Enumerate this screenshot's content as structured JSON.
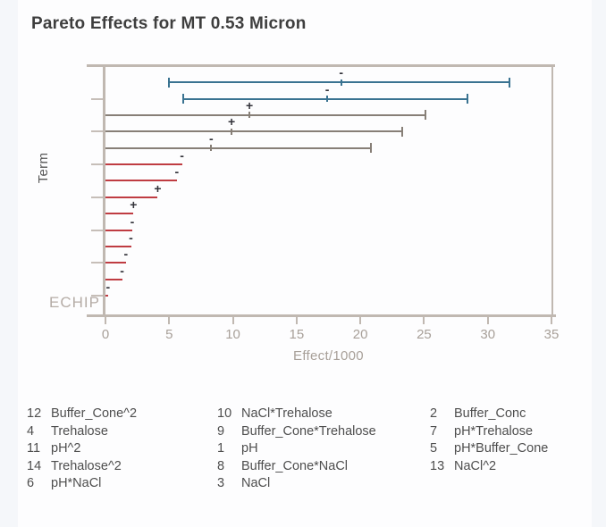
{
  "title": "Pareto Effects for MT 0.53 Micron",
  "chart_data": {
    "type": "bar",
    "subtype": "pareto-effects-with-intervals",
    "title": "Pareto Effects for MT 0.53 Micron",
    "xlabel": "Effect/1000",
    "ylabel": "Term",
    "watermark": "ECHIP",
    "xlim": [
      0,
      35
    ],
    "xticks": [
      0,
      5,
      10,
      15,
      20,
      25,
      30,
      35
    ],
    "grid": false,
    "colors": {
      "interval_blue": "#3a7391",
      "interval_gray": "#877f77",
      "bar_red": "#bf3c42",
      "frame": "#c0b8b1",
      "tick_label": "#a8a099"
    },
    "bars": [
      {
        "term_no": 12,
        "term": "Buffer_Cone^2",
        "style": "interval_blue",
        "low": 5.0,
        "high": 31.7,
        "effect": 18.5,
        "sign": "-"
      },
      {
        "term_no": 4,
        "term": "Trehalose",
        "style": "interval_blue",
        "low": 6.1,
        "high": 28.4,
        "effect": 17.4,
        "sign": "-"
      },
      {
        "term_no": 11,
        "term": "pH^2",
        "style": "interval_gray",
        "low": 0,
        "high": 25.1,
        "effect": 11.3,
        "sign": "+"
      },
      {
        "term_no": 14,
        "term": "Trehalose^2",
        "style": "interval_gray",
        "low": 0,
        "high": 23.3,
        "effect": 9.9,
        "sign": "+"
      },
      {
        "term_no": 6,
        "term": "pH*NaCl",
        "style": "interval_gray",
        "low": 0,
        "high": 20.8,
        "effect": 8.3,
        "sign": "-"
      },
      {
        "term_no": 10,
        "term": "NaCl*Trehalose",
        "style": "bar_red",
        "effect": 6.0,
        "sign": "-"
      },
      {
        "term_no": 9,
        "term": "Buffer_Cone*Trehalose",
        "style": "bar_red",
        "effect": 5.6,
        "sign": "-"
      },
      {
        "term_no": 1,
        "term": "pH",
        "style": "bar_red",
        "effect": 4.1,
        "sign": "+"
      },
      {
        "term_no": 8,
        "term": "Buffer_Cone*NaCl",
        "style": "bar_red",
        "effect": 2.2,
        "sign": "+"
      },
      {
        "term_no": 3,
        "term": "NaCl",
        "style": "bar_red",
        "effect": 2.1,
        "sign": "-"
      },
      {
        "term_no": 2,
        "term": "Buffer_Conc",
        "style": "bar_red",
        "effect": 2.0,
        "sign": "-"
      },
      {
        "term_no": 7,
        "term": "pH*Trehalose",
        "style": "bar_red",
        "effect": 1.6,
        "sign": "-"
      },
      {
        "term_no": 5,
        "term": "pH*Buffer_Cone",
        "style": "bar_red",
        "effect": 1.3,
        "sign": "-"
      },
      {
        "term_no": 13,
        "term": "NaCl^2",
        "style": "bar_red",
        "effect": 0.2,
        "sign": "-"
      }
    ]
  },
  "legend": {
    "columns": [
      {
        "items": [
          {
            "no": "12",
            "label": "Buffer_Cone^2"
          },
          {
            "no": "4",
            "label": "Trehalose"
          },
          {
            "no": "11",
            "label": "pH^2"
          },
          {
            "no": "14",
            "label": "Trehalose^2"
          },
          {
            "no": "6",
            "label": "pH*NaCl"
          }
        ]
      },
      {
        "items": [
          {
            "no": "10",
            "label": "NaCl*Trehalose"
          },
          {
            "no": "9",
            "label": "Buffer_Cone*Trehalose"
          },
          {
            "no": "1",
            "label": "pH"
          },
          {
            "no": "8",
            "label": "Buffer_Cone*NaCl"
          },
          {
            "no": "3",
            "label": "NaCl"
          }
        ]
      },
      {
        "items": [
          {
            "no": "2",
            "label": "Buffer_Conc"
          },
          {
            "no": "7",
            "label": "pH*Trehalose"
          },
          {
            "no": "5",
            "label": "pH*Buffer_Cone"
          },
          {
            "no": "13",
            "label": "NaCl^2"
          }
        ]
      }
    ]
  }
}
